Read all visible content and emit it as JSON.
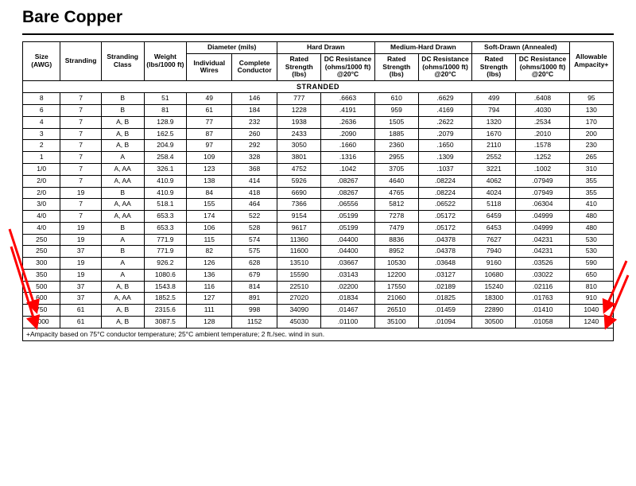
{
  "title": "Bare Copper",
  "annotations": {
    "arrow_color": "#ff0000",
    "arrow_stroke": 3
  },
  "header": {
    "groups": {
      "size": "Size (AWG)",
      "stranding": "Stranding",
      "stranding_class": "Stranding Class",
      "weight": "Weight (lbs/1000 ft)",
      "diameter": "Diameter (mils)",
      "hard_drawn": "Hard Drawn",
      "medium_hard": "Medium-Hard Drawn",
      "soft_drawn": "Soft-Drawn (Annealed)",
      "ampacity": "Allowable Ampacity+"
    },
    "subs": {
      "ind_wires": "Individual Wires",
      "complete_cond": "Complete Conductor",
      "rated_strength": "Rated Strength (lbs)",
      "dc_resistance": "DC Resistance (ohms/1000 ft) @20°C"
    }
  },
  "section_label": "STRANDED",
  "footnote": "+Ampacity based on 75°C conductor temperature; 25°C ambient temperature; 2 ft./sec. wind in sun.",
  "rows": [
    {
      "size": "8",
      "strand": "7",
      "class": "B",
      "wt": "51",
      "iw": "49",
      "cc": "146",
      "hd_s": "777",
      "hd_r": ".6663",
      "mh_s": "610",
      "mh_r": ".6629",
      "sd_s": "499",
      "sd_r": ".6408",
      "amp": "95"
    },
    {
      "size": "6",
      "strand": "7",
      "class": "B",
      "wt": "81",
      "iw": "61",
      "cc": "184",
      "hd_s": "1228",
      "hd_r": ".4191",
      "mh_s": "959",
      "mh_r": ".4169",
      "sd_s": "794",
      "sd_r": ".4030",
      "amp": "130"
    },
    {
      "size": "4",
      "strand": "7",
      "class": "A, B",
      "wt": "128.9",
      "iw": "77",
      "cc": "232",
      "hd_s": "1938",
      "hd_r": ".2636",
      "mh_s": "1505",
      "mh_r": ".2622",
      "sd_s": "1320",
      "sd_r": ".2534",
      "amp": "170"
    },
    {
      "size": "3",
      "strand": "7",
      "class": "A, B",
      "wt": "162.5",
      "iw": "87",
      "cc": "260",
      "hd_s": "2433",
      "hd_r": ".2090",
      "mh_s": "1885",
      "mh_r": ".2079",
      "sd_s": "1670",
      "sd_r": ".2010",
      "amp": "200"
    },
    {
      "size": "2",
      "strand": "7",
      "class": "A, B",
      "wt": "204.9",
      "iw": "97",
      "cc": "292",
      "hd_s": "3050",
      "hd_r": ".1660",
      "mh_s": "2360",
      "mh_r": ".1650",
      "sd_s": "2110",
      "sd_r": ".1578",
      "amp": "230"
    },
    {
      "size": "1",
      "strand": "7",
      "class": "A",
      "wt": "258.4",
      "iw": "109",
      "cc": "328",
      "hd_s": "3801",
      "hd_r": ".1316",
      "mh_s": "2955",
      "mh_r": ".1309",
      "sd_s": "2552",
      "sd_r": ".1252",
      "amp": "265"
    },
    {
      "size": "1/0",
      "strand": "7",
      "class": "A, AA",
      "wt": "326.1",
      "iw": "123",
      "cc": "368",
      "hd_s": "4752",
      "hd_r": ".1042",
      "mh_s": "3705",
      "mh_r": ".1037",
      "sd_s": "3221",
      "sd_r": ".1002",
      "amp": "310"
    },
    {
      "size": "2/0",
      "strand": "7",
      "class": "A, AA",
      "wt": "410.9",
      "iw": "138",
      "cc": "414",
      "hd_s": "5926",
      "hd_r": ".08267",
      "mh_s": "4640",
      "mh_r": ".08224",
      "sd_s": "4062",
      "sd_r": ".07949",
      "amp": "355"
    },
    {
      "size": "2/0",
      "strand": "19",
      "class": "B",
      "wt": "410.9",
      "iw": "84",
      "cc": "418",
      "hd_s": "6690",
      "hd_r": ".08267",
      "mh_s": "4765",
      "mh_r": ".08224",
      "sd_s": "4024",
      "sd_r": ".07949",
      "amp": "355"
    },
    {
      "size": "3/0",
      "strand": "7",
      "class": "A, AA",
      "wt": "518.1",
      "iw": "155",
      "cc": "464",
      "hd_s": "7366",
      "hd_r": ".06556",
      "mh_s": "5812",
      "mh_r": ".06522",
      "sd_s": "5118",
      "sd_r": ".06304",
      "amp": "410"
    },
    {
      "size": "4/0",
      "strand": "7",
      "class": "A, AA",
      "wt": "653.3",
      "iw": "174",
      "cc": "522",
      "hd_s": "9154",
      "hd_r": ".05199",
      "mh_s": "7278",
      "mh_r": ".05172",
      "sd_s": "6459",
      "sd_r": ".04999",
      "amp": "480"
    },
    {
      "size": "4/0",
      "strand": "19",
      "class": "B",
      "wt": "653.3",
      "iw": "106",
      "cc": "528",
      "hd_s": "9617",
      "hd_r": ".05199",
      "mh_s": "7479",
      "mh_r": ".05172",
      "sd_s": "6453",
      "sd_r": ".04999",
      "amp": "480"
    },
    {
      "size": "250",
      "strand": "19",
      "class": "A",
      "wt": "771.9",
      "iw": "115",
      "cc": "574",
      "hd_s": "11360",
      "hd_r": ".04400",
      "mh_s": "8836",
      "mh_r": ".04378",
      "sd_s": "7627",
      "sd_r": ".04231",
      "amp": "530"
    },
    {
      "size": "250",
      "strand": "37",
      "class": "B",
      "wt": "771.9",
      "iw": "82",
      "cc": "575",
      "hd_s": "11600",
      "hd_r": ".04400",
      "mh_s": "8952",
      "mh_r": ".04378",
      "sd_s": "7940",
      "sd_r": ".04231",
      "amp": "530"
    },
    {
      "size": "300",
      "strand": "19",
      "class": "A",
      "wt": "926.2",
      "iw": "126",
      "cc": "628",
      "hd_s": "13510",
      "hd_r": ".03667",
      "mh_s": "10530",
      "mh_r": ".03648",
      "sd_s": "9160",
      "sd_r": ".03526",
      "amp": "590"
    },
    {
      "size": "350",
      "strand": "19",
      "class": "A",
      "wt": "1080.6",
      "iw": "136",
      "cc": "679",
      "hd_s": "15590",
      "hd_r": ".03143",
      "mh_s": "12200",
      "mh_r": ".03127",
      "sd_s": "10680",
      "sd_r": ".03022",
      "amp": "650"
    },
    {
      "size": "500",
      "strand": "37",
      "class": "A, B",
      "wt": "1543.8",
      "iw": "116",
      "cc": "814",
      "hd_s": "22510",
      "hd_r": ".02200",
      "mh_s": "17550",
      "mh_r": ".02189",
      "sd_s": "15240",
      "sd_r": ".02116",
      "amp": "810"
    },
    {
      "size": "600",
      "strand": "37",
      "class": "A, AA",
      "wt": "1852.5",
      "iw": "127",
      "cc": "891",
      "hd_s": "27020",
      "hd_r": ".01834",
      "mh_s": "21060",
      "mh_r": ".01825",
      "sd_s": "18300",
      "sd_r": ".01763",
      "amp": "910"
    },
    {
      "size": "750",
      "strand": "61",
      "class": "A, B",
      "wt": "2315.6",
      "iw": "111",
      "cc": "998",
      "hd_s": "34090",
      "hd_r": ".01467",
      "mh_s": "26510",
      "mh_r": ".01459",
      "sd_s": "22890",
      "sd_r": ".01410",
      "amp": "1040"
    },
    {
      "size": "1000",
      "strand": "61",
      "class": "A, B",
      "wt": "3087.5",
      "iw": "128",
      "cc": "1152",
      "hd_s": "45030",
      "hd_r": ".01100",
      "mh_s": "35100",
      "mh_r": ".01094",
      "sd_s": "30500",
      "sd_r": ".01058",
      "amp": "1240"
    }
  ]
}
